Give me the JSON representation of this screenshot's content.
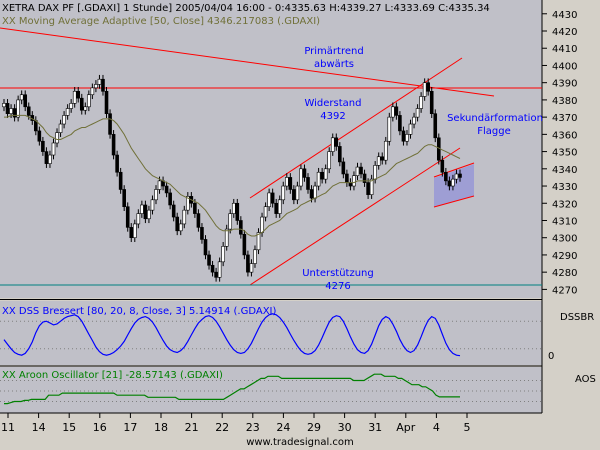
{
  "chart_data": [
    {
      "type": "candlestick",
      "header": "XETRA DAX PF [.GDAXI]  1 Stunde] 2005/04/04 16:00 - 0:4335.63 H:4339.27 L:4333.69 C:4335.34",
      "ma_label": "XX Moving Average Adaptive [50, Close] 4346.217083 (.GDAXI)",
      "ylim": [
        4265,
        4438
      ],
      "yticks": [
        4270,
        4280,
        4290,
        4300,
        4310,
        4320,
        4330,
        4340,
        4350,
        4360,
        4370,
        4380,
        4390,
        4400,
        4410,
        4420,
        4430
      ],
      "x_labels": [
        "11",
        "14",
        "15",
        "16",
        "17",
        "18",
        "21",
        "22",
        "23",
        "24",
        "29",
        "30",
        "31",
        "Apr",
        "4",
        "5"
      ],
      "annotations": [
        {
          "text": "Primärtrend",
          "color": "#0000ff"
        },
        {
          "text": "abwärts",
          "color": "#0000ff"
        },
        {
          "text": "Widerstand",
          "color": "#0000ff"
        },
        {
          "text": "4392",
          "color": "#0000ff"
        },
        {
          "text": "Sekundärformation",
          "color": "#0000ff"
        },
        {
          "text": "Flagge",
          "color": "#0000ff"
        },
        {
          "text": "Unterstützung",
          "color": "#0000ff"
        },
        {
          "text": "4276",
          "color": "#0000ff"
        }
      ],
      "levels": {
        "resistance": 4392,
        "support": 4276
      },
      "close": [
        4378,
        4372,
        4375,
        4370,
        4380,
        4383,
        4376,
        4371,
        4368,
        4362,
        4356,
        4350,
        4343,
        4348,
        4355,
        4361,
        4366,
        4371,
        4375,
        4378,
        4385,
        4381,
        4374,
        4376,
        4383,
        4387,
        4389,
        4392,
        4385,
        4372,
        4360,
        4348,
        4338,
        4328,
        4318,
        4306,
        4300,
        4308,
        4314,
        4319,
        4311,
        4316,
        4322,
        4328,
        4333,
        4330,
        4326,
        4319,
        4312,
        4304,
        4308,
        4316,
        4324,
        4320,
        4314,
        4306,
        4299,
        4290,
        4284,
        4280,
        4277,
        4286,
        4295,
        4305,
        4314,
        4320,
        4310,
        4302,
        4290,
        4280,
        4285,
        4293,
        4303,
        4312,
        4318,
        4326,
        4320,
        4314,
        4322,
        4330,
        4335,
        4328,
        4322,
        4330,
        4340,
        4335,
        4328,
        4323,
        4330,
        4338,
        4334,
        4340,
        4350,
        4358,
        4353,
        4344,
        4337,
        4332,
        4330,
        4336,
        4341,
        4337,
        4332,
        4325,
        4334,
        4342,
        4347,
        4345,
        4356,
        4370,
        4376,
        4371,
        4362,
        4356,
        4360,
        4366,
        4370,
        4375,
        4382,
        4390,
        4385,
        4372,
        4358,
        4345,
        4338,
        4333,
        4330,
        4334,
        4337,
        4335
      ],
      "ma": [
        4370,
        4370,
        4371,
        4371,
        4371,
        4371,
        4371,
        4370,
        4369,
        4368,
        4366,
        4364,
        4361,
        4359,
        4358,
        4357,
        4357,
        4358,
        4359,
        4360,
        4362,
        4363,
        4364,
        4364,
        4365,
        4366,
        4367,
        4368,
        4369,
        4369,
        4369,
        4368,
        4366,
        4363,
        4360,
        4356,
        4352,
        4349,
        4346,
        4343,
        4340,
        4338,
        4336,
        4335,
        4334,
        4333,
        4332,
        4331,
        4329,
        4327,
        4325,
        4324,
        4323,
        4322,
        4321,
        4320,
        4318,
        4316,
        4313,
        4310,
        4307,
        4305,
        4304,
        4304,
        4304,
        4305,
        4305,
        4305,
        4304,
        4302,
        4301,
        4301,
        4302,
        4303,
        4305,
        4307,
        4308,
        4309,
        4310,
        4312,
        4314,
        4315,
        4316,
        4317,
        4319,
        4320,
        4321,
        4322,
        4323,
        4324,
        4325,
        4326,
        4328,
        4330,
        4331,
        4332,
        4332,
        4332,
        4332,
        4332,
        4333,
        4333,
        4333,
        4333,
        4333,
        4334,
        4335,
        4336,
        4337,
        4339,
        4341,
        4343,
        4344,
        4345,
        4346,
        4347,
        4348,
        4349,
        4351,
        4353,
        4354,
        4354,
        4353,
        4352,
        4351,
        4350,
        4349,
        4348,
        4347,
        4346
      ]
    },
    {
      "type": "line",
      "label": "XX DSS Bressert [80, 20, 8, Close, 3] 5.14914 (.GDAXI)",
      "axis_labels": [
        "DSSBR",
        "0"
      ],
      "values": [
        40,
        30,
        20,
        12,
        8,
        6,
        10,
        20,
        35,
        55,
        70,
        78,
        80,
        76,
        72,
        74,
        80,
        86,
        90,
        92,
        94,
        90,
        80,
        66,
        52,
        38,
        24,
        14,
        8,
        6,
        8,
        12,
        18,
        26,
        36,
        50,
        64,
        76,
        84,
        88,
        90,
        86,
        78,
        66,
        52,
        38,
        26,
        18,
        14,
        12,
        16,
        24,
        36,
        50,
        64,
        76,
        84,
        90,
        92,
        88,
        80,
        68,
        54,
        40,
        28,
        18,
        12,
        10,
        12,
        20,
        32,
        48,
        64,
        78,
        88,
        94,
        96,
        94,
        88,
        78,
        66,
        52,
        38,
        26,
        16,
        10,
        8,
        10,
        16,
        28,
        44,
        62,
        78,
        88,
        92,
        90,
        80,
        64,
        46,
        30,
        18,
        12,
        10,
        16,
        30,
        50,
        70,
        84,
        90,
        86,
        74,
        58,
        40,
        26,
        16,
        12,
        16,
        28,
        46,
        66,
        82,
        90,
        86,
        72,
        52,
        32,
        18,
        10,
        6,
        5
      ]
    },
    {
      "type": "line",
      "label": "XX Aroon Oscillator [21] -28.57143 (.GDAXI)",
      "axis_labels": [
        "AOS"
      ],
      "values": [
        -60,
        -60,
        -55,
        -50,
        -50,
        -50,
        -45,
        -45,
        -40,
        -40,
        -40,
        -40,
        -40,
        -20,
        -20,
        -20,
        -20,
        -10,
        -10,
        -10,
        -10,
        -10,
        -10,
        -10,
        -10,
        -10,
        -10,
        -10,
        -10,
        -10,
        -10,
        -10,
        -10,
        -20,
        -20,
        -20,
        -20,
        -20,
        -20,
        -20,
        -20,
        -20,
        -30,
        -30,
        -30,
        -30,
        -30,
        -30,
        -30,
        -30,
        -30,
        -40,
        -40,
        -40,
        -40,
        -40,
        -40,
        -40,
        -40,
        -40,
        -40,
        -40,
        -40,
        -40,
        -40,
        -30,
        -20,
        -10,
        0,
        10,
        10,
        20,
        30,
        40,
        50,
        60,
        60,
        70,
        70,
        70,
        70,
        60,
        60,
        60,
        60,
        60,
        60,
        60,
        60,
        60,
        60,
        60,
        60,
        60,
        60,
        60,
        60,
        60,
        60,
        60,
        60,
        60,
        50,
        50,
        50,
        50,
        60,
        70,
        80,
        80,
        80,
        70,
        70,
        70,
        70,
        60,
        60,
        50,
        40,
        30,
        30,
        30,
        20,
        20,
        10,
        0,
        -20,
        -28,
        -28,
        -28,
        -28,
        -28,
        -28,
        -28
      ]
    }
  ],
  "footer": {
    "source": "www.tradesignal.com"
  }
}
